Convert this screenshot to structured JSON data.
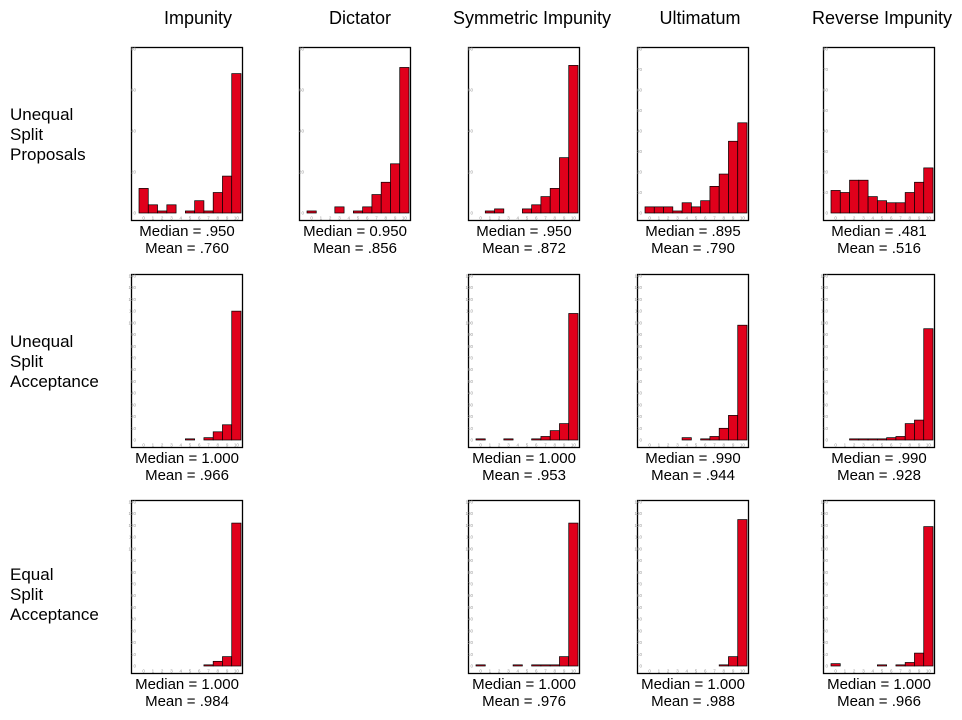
{
  "columns": [
    "Impunity",
    "Dictator",
    "Symmetric Impunity",
    "Ultimatum",
    "Reverse Impunity"
  ],
  "rows": [
    [
      "Unequal",
      "Split",
      "Proposals"
    ],
    [
      "Unequal",
      "Split",
      "Acceptance"
    ],
    [
      "Equal",
      "Split",
      "Acceptance"
    ]
  ],
  "colors": {
    "bar": "#e0001b",
    "bar_stroke": "#000000",
    "axis": "#000000",
    "tick": "#999999"
  },
  "chart_data": [
    {
      "type": "bar",
      "row": 0,
      "col": 0,
      "categories": [
        "0",
        "1",
        "2",
        "3",
        "4",
        "5",
        "6",
        "7",
        "8",
        "9",
        "10"
      ],
      "ylim": [
        0,
        80
      ],
      "yticks": [
        "0",
        "20",
        "40",
        "60",
        "80"
      ],
      "values": [
        12,
        4,
        1,
        4,
        0,
        1,
        6,
        1,
        10,
        18,
        68
      ],
      "median": "Median = .950",
      "mean": "Mean = .760"
    },
    {
      "type": "bar",
      "row": 0,
      "col": 1,
      "categories": [
        "0",
        "1",
        "2",
        "3",
        "4",
        "5",
        "6",
        "7",
        "8",
        "9",
        "10"
      ],
      "ylim": [
        0,
        80
      ],
      "yticks": [
        "0",
        "20",
        "40",
        "60",
        "80"
      ],
      "values": [
        1,
        0,
        0,
        3,
        0,
        1,
        3,
        9,
        15,
        24,
        71
      ],
      "median": "Median = 0.950",
      "mean": "Mean = .856"
    },
    {
      "type": "bar",
      "row": 0,
      "col": 2,
      "categories": [
        "0",
        "1",
        "2",
        "3",
        "4",
        "5",
        "6",
        "7",
        "8",
        "9",
        "10"
      ],
      "ylim": [
        0,
        80
      ],
      "yticks": [
        "0",
        "20",
        "40",
        "60",
        "80"
      ],
      "values": [
        0,
        1,
        2,
        0,
        0,
        2,
        4,
        8,
        12,
        27,
        72
      ],
      "median": "Median = .950",
      "mean": "Mean = .872"
    },
    {
      "type": "bar",
      "row": 0,
      "col": 3,
      "categories": [
        "0",
        "1",
        "2",
        "3",
        "4",
        "5",
        "6",
        "7",
        "8",
        "9",
        "10"
      ],
      "ylim": [
        0,
        80
      ],
      "yticks": [
        "0",
        "10",
        "20",
        "30",
        "40",
        "50",
        "60",
        "70",
        "80"
      ],
      "values": [
        3,
        3,
        3,
        1,
        5,
        3,
        6,
        13,
        19,
        35,
        44
      ],
      "median": "Median = .895",
      "mean": "Mean = .790"
    },
    {
      "type": "bar",
      "row": 0,
      "col": 4,
      "categories": [
        "0",
        "1",
        "2",
        "3",
        "4",
        "5",
        "6",
        "7",
        "8",
        "9",
        "10"
      ],
      "ylim": [
        0,
        80
      ],
      "yticks": [
        "0",
        "10",
        "20",
        "30",
        "40",
        "50",
        "60",
        "70",
        "80"
      ],
      "values": [
        11,
        10,
        16,
        16,
        8,
        6,
        5,
        5,
        10,
        15,
        22
      ],
      "median": "Median = .481",
      "mean": "Mean = .516"
    },
    {
      "type": "bar",
      "row": 1,
      "col": 0,
      "categories": [
        "0",
        "1",
        "2",
        "3",
        "4",
        "5",
        "6",
        "7",
        "8",
        "9",
        "10"
      ],
      "ylim": [
        0,
        140
      ],
      "yticks": [
        "0",
        "10",
        "20",
        "30",
        "40",
        "50",
        "60",
        "70",
        "80",
        "90",
        "100",
        "110",
        "120",
        "130",
        "140"
      ],
      "values": [
        0,
        0,
        0,
        0,
        0,
        1,
        0,
        2,
        7,
        13,
        110
      ],
      "median": "Median = 1.000",
      "mean": "Mean = .966"
    },
    {
      "type": "bar",
      "row": 1,
      "col": 2,
      "categories": [
        "0",
        "1",
        "2",
        "3",
        "4",
        "5",
        "6",
        "7",
        "8",
        "9",
        "10"
      ],
      "ylim": [
        0,
        140
      ],
      "yticks": [
        "0",
        "10",
        "20",
        "30",
        "40",
        "50",
        "60",
        "70",
        "80",
        "90",
        "100",
        "110",
        "120",
        "130",
        "140"
      ],
      "values": [
        1,
        0,
        0,
        1,
        0,
        0,
        1,
        3,
        8,
        14,
        108
      ],
      "median": "Median = 1.000",
      "mean": "Mean = .953"
    },
    {
      "type": "bar",
      "row": 1,
      "col": 3,
      "categories": [
        "0",
        "1",
        "2",
        "3",
        "4",
        "5",
        "6",
        "7",
        "8",
        "9",
        "10"
      ],
      "ylim": [
        0,
        140
      ],
      "yticks": [
        "0",
        "10",
        "20",
        "30",
        "40",
        "50",
        "60",
        "70",
        "80",
        "90",
        "100",
        "110",
        "120",
        "130",
        "140"
      ],
      "values": [
        0,
        0,
        0,
        0,
        2,
        0,
        1,
        3,
        10,
        21,
        98
      ],
      "median": "Median = .990",
      "mean": "Mean = .944"
    },
    {
      "type": "bar",
      "row": 1,
      "col": 4,
      "categories": [
        "0",
        "1",
        "2",
        "3",
        "4",
        "5",
        "6",
        "7",
        "8",
        "9",
        "10"
      ],
      "ylim": [
        0,
        140
      ],
      "yticks": [
        "0",
        "10",
        "20",
        "30",
        "40",
        "50",
        "60",
        "70",
        "80",
        "90",
        "100",
        "110",
        "120",
        "130",
        "140"
      ],
      "values": [
        0,
        0,
        1,
        1,
        1,
        1,
        2,
        3,
        14,
        17,
        95
      ],
      "median": "Median = .990",
      "mean": "Mean = .928"
    },
    {
      "type": "bar",
      "row": 2,
      "col": 0,
      "categories": [
        "0",
        "1",
        "2",
        "3",
        "4",
        "5",
        "6",
        "7",
        "8",
        "9",
        "10"
      ],
      "ylim": [
        0,
        140
      ],
      "yticks": [
        "0",
        "10",
        "20",
        "30",
        "40",
        "50",
        "60",
        "70",
        "80",
        "90",
        "100",
        "110",
        "120",
        "130",
        "140"
      ],
      "values": [
        0,
        0,
        0,
        0,
        0,
        0,
        0,
        1,
        4,
        8,
        122
      ],
      "median": "Median = 1.000",
      "mean": "Mean = .984"
    },
    {
      "type": "bar",
      "row": 2,
      "col": 2,
      "categories": [
        "0",
        "1",
        "2",
        "3",
        "4",
        "5",
        "6",
        "7",
        "8",
        "9",
        "10"
      ],
      "ylim": [
        0,
        140
      ],
      "yticks": [
        "0",
        "10",
        "20",
        "30",
        "40",
        "50",
        "60",
        "70",
        "80",
        "90",
        "100",
        "110",
        "120",
        "130",
        "140"
      ],
      "values": [
        1,
        0,
        0,
        0,
        1,
        0,
        1,
        1,
        1,
        8,
        122
      ],
      "median": "Median = 1.000",
      "mean": "Mean = .976"
    },
    {
      "type": "bar",
      "row": 2,
      "col": 3,
      "categories": [
        "0",
        "1",
        "2",
        "3",
        "4",
        "5",
        "6",
        "7",
        "8",
        "9",
        "10"
      ],
      "ylim": [
        0,
        140
      ],
      "yticks": [
        "0",
        "10",
        "20",
        "30",
        "40",
        "50",
        "60",
        "70",
        "80",
        "90",
        "100",
        "110",
        "120",
        "130",
        "140"
      ],
      "values": [
        0,
        0,
        0,
        0,
        0,
        0,
        0,
        0,
        1,
        8,
        125
      ],
      "median": "Median = 1.000",
      "mean": "Mean = .988"
    },
    {
      "type": "bar",
      "row": 2,
      "col": 4,
      "categories": [
        "0",
        "1",
        "2",
        "3",
        "4",
        "5",
        "6",
        "7",
        "8",
        "9",
        "10"
      ],
      "ylim": [
        0,
        140
      ],
      "yticks": [
        "0",
        "10",
        "20",
        "30",
        "40",
        "50",
        "60",
        "70",
        "80",
        "90",
        "100",
        "110",
        "120",
        "130",
        "140"
      ],
      "values": [
        2,
        0,
        0,
        0,
        0,
        1,
        0,
        1,
        3,
        11,
        119
      ],
      "median": "Median = 1.000",
      "mean": "Mean = .966"
    }
  ]
}
